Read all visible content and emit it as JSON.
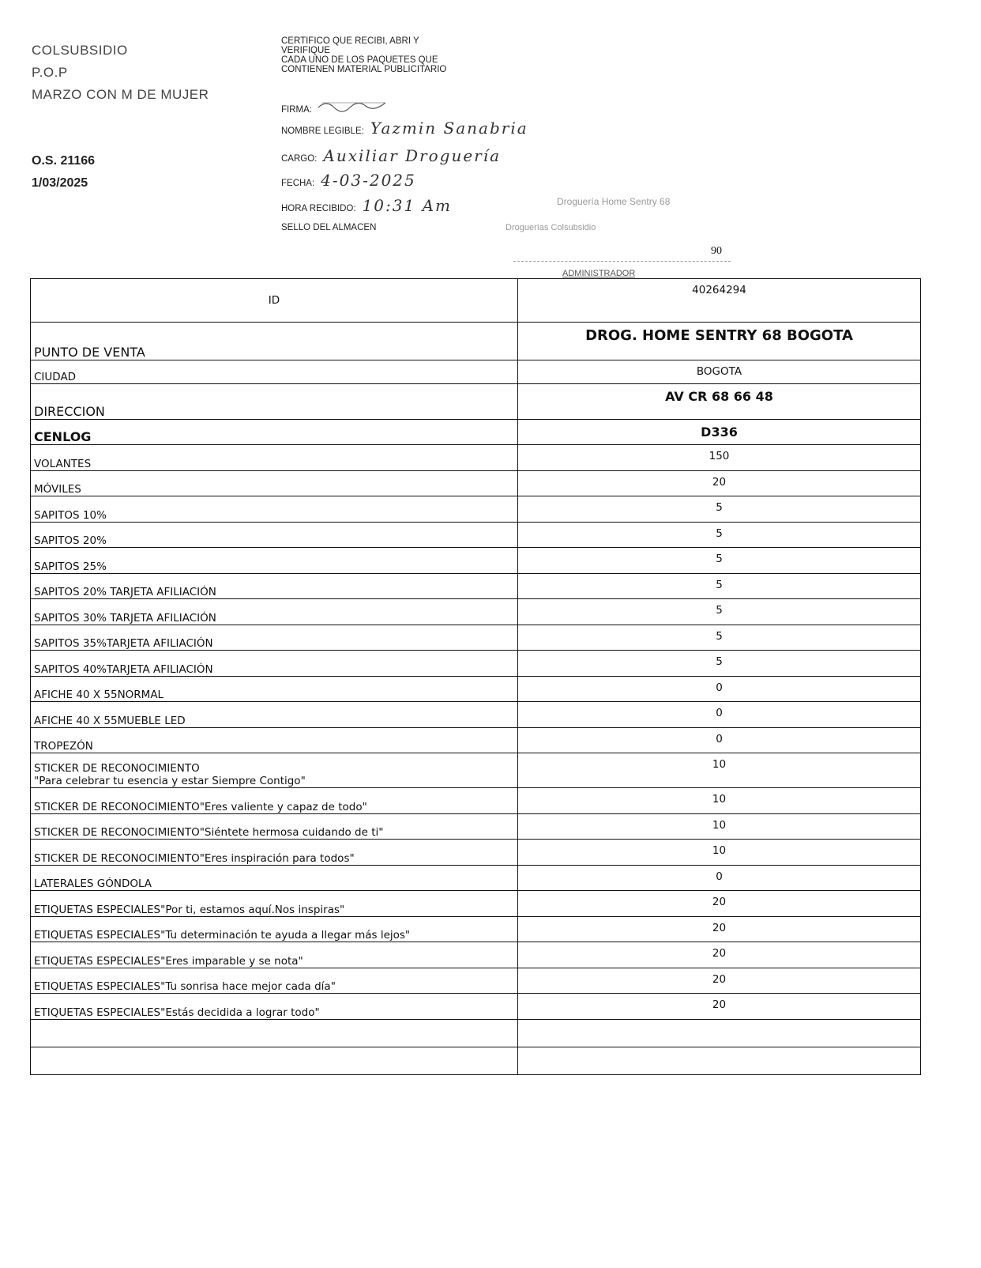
{
  "header": {
    "company": "COLSUBSIDIO",
    "type": "P.O.P",
    "campaign": "MARZO CON M DE MUJER",
    "order": "O.S. 21166",
    "date": "1/03/2025"
  },
  "certification": {
    "lines": [
      "CERTIFICO QUE RECIBI, ABRI Y",
      "VERIFIQUE",
      "CADA  UNO DE LOS PAQUETES QUE",
      "CONTIENEN MATERIAL PUBLICITARIO"
    ],
    "firma_label": "FIRMA:",
    "nombre_label": "NOMBRE LEGIBLE:",
    "nombre_value": "Yazmin Sanabria",
    "cargo_label": "CARGO:",
    "cargo_value": "Auxiliar Droguería",
    "fecha_label": "FECHA:",
    "fecha_value": "4-03-2025",
    "hora_label": "HORA RECIBIDO:",
    "hora_value": "10:31 Am",
    "sello_label": "SELLO DEL ALMACEN",
    "stamp_line1": "Droguería Home Sentry 68",
    "stamp_line2": "Droguerías Colsubsidio",
    "number": "90",
    "admin": "ADMINISTRADOR"
  },
  "table": {
    "rows": [
      {
        "label": "ID",
        "value": "40264294"
      },
      {
        "label": "PUNTO DE VENTA",
        "value": "DROG. HOME SENTRY 68 BOGOTA"
      },
      {
        "label": "CIUDAD",
        "value": "BOGOTA"
      },
      {
        "label": "DIRECCION",
        "value": "AV CR 68 66 48"
      },
      {
        "label": "CENLOG",
        "value": "D336"
      },
      {
        "label": "VOLANTES",
        "value": "150"
      },
      {
        "label": "MÓVILES",
        "value": "20"
      },
      {
        "label": "SAPITOS 10%",
        "value": "5"
      },
      {
        "label": "SAPITOS 20%",
        "value": "5"
      },
      {
        "label": "SAPITOS 25%",
        "value": "5"
      },
      {
        "label": "SAPITOS 20% TARJETA AFILIACIÓN",
        "value": "5"
      },
      {
        "label": "SAPITOS 30% TARJETA AFILIACIÓN",
        "value": "5"
      },
      {
        "label": "SAPITOS 35%TARJETA AFILIACIÓN",
        "value": "5"
      },
      {
        "label": "SAPITOS 40%TARJETA AFILIACIÓN",
        "value": "5"
      },
      {
        "label": "AFICHE 40 X 55NORMAL",
        "value": "0"
      },
      {
        "label": "AFICHE 40 X 55MUEBLE LED",
        "value": "0"
      },
      {
        "label": "TROPEZÓN",
        "value": "0"
      },
      {
        "label": "STICKER DE RECONOCIMIENTO",
        "label2": "\"Para celebrar tu esencia y estar Siempre Contigo\"",
        "value": "10"
      },
      {
        "label": "STICKER DE RECONOCIMIENTO\"Eres valiente y capaz de todo\"",
        "value": "10"
      },
      {
        "label": "STICKER DE RECONOCIMIENTO\"Siéntete hermosa cuidando de ti\"",
        "value": "10"
      },
      {
        "label": "STICKER DE RECONOCIMIENTO\"Eres inspiración para todos\"",
        "value": "10"
      },
      {
        "label": "LATERALES GÓNDOLA",
        "value": "0"
      },
      {
        "label": "ETIQUETAS ESPECIALES\"Por ti, estamos aquí.Nos inspiras\"",
        "value": "20"
      },
      {
        "label": "ETIQUETAS ESPECIALES\"Tu determinación te ayuda a llegar más lejos\"",
        "value": "20"
      },
      {
        "label": "ETIQUETAS ESPECIALES\"Eres imparable y se nota\"",
        "value": "20"
      },
      {
        "label": "ETIQUETAS ESPECIALES\"Tu sonrisa hace mejor cada día\"",
        "value": "20"
      },
      {
        "label": "ETIQUETAS ESPECIALES\"Estás decidida a lograr todo\"",
        "value": "20"
      }
    ]
  }
}
